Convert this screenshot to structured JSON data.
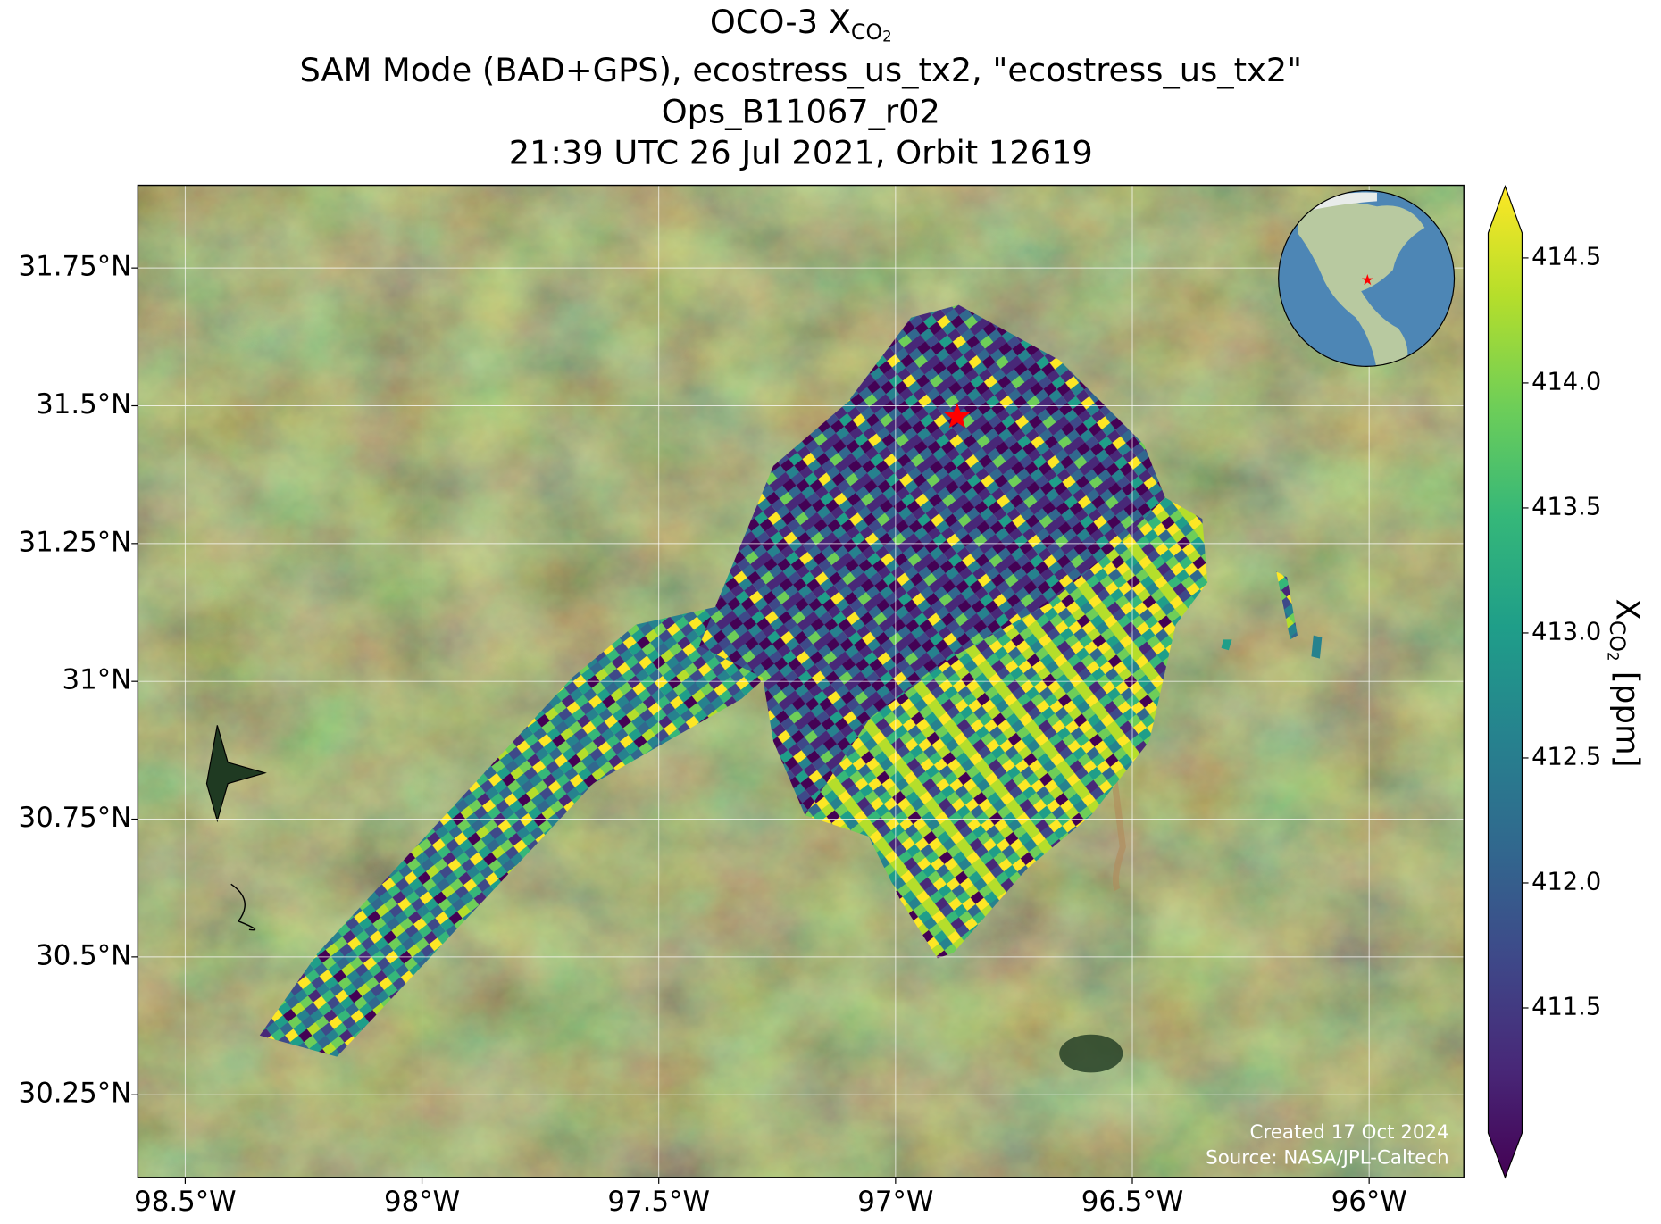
{
  "chart_data": {
    "type": "map",
    "title": {
      "main": "OCO-3 X",
      "sub": "CO",
      "subsub": "2"
    },
    "subtitle_lines": [
      "SAM Mode (BAD+GPS), ecostress_us_tx2, \"ecostress_us_tx2\"",
      "Ops_B11067_r02",
      "21:39 UTC 26 Jul 2021, Orbit 12619"
    ],
    "xlim": [
      -98.6,
      -95.8
    ],
    "ylim": [
      30.1,
      31.9
    ],
    "xticks": [
      {
        "value": -98.5,
        "label": "98.5°W"
      },
      {
        "value": -98,
        "label": "98°W"
      },
      {
        "value": -97.5,
        "label": "97.5°W"
      },
      {
        "value": -97,
        "label": "97°W"
      },
      {
        "value": -96.5,
        "label": "96.5°W"
      },
      {
        "value": -96,
        "label": "96°W"
      }
    ],
    "yticks": [
      {
        "value": 30.25,
        "label": "30.25°N"
      },
      {
        "value": 30.5,
        "label": "30.5°N"
      },
      {
        "value": 30.75,
        "label": "30.75°N"
      },
      {
        "value": 31,
        "label": "31°N"
      },
      {
        "value": 31.25,
        "label": "31.25°N"
      },
      {
        "value": 31.5,
        "label": "31.5°N"
      },
      {
        "value": 31.75,
        "label": "31.75°N"
      }
    ],
    "grid": true,
    "site": {
      "lon": -96.87,
      "lat": 31.48,
      "color": "#ff0000"
    },
    "colorbar": {
      "label": {
        "main": "X",
        "sub": "CO",
        "subsub": "2",
        "unit": " [ppm]"
      },
      "lim": [
        411.0,
        414.6
      ],
      "ticks": [
        411.5,
        {
          "value": 412,
          "label": "412.0"
        },
        412.5,
        {
          "value": 413,
          "label": "413.0"
        },
        413.5,
        {
          "value": 414,
          "label": "414.0"
        },
        414.5
      ],
      "colormap": [
        "#440154",
        "#482878",
        "#3e4989",
        "#31688e",
        "#26828e",
        "#1f9e89",
        "#35b779",
        "#6ece58",
        "#b5de2b",
        "#fde725"
      ]
    },
    "credits": [
      "Created 17 Oct 2024",
      "Source: NASA/JPL-Caltech"
    ]
  }
}
